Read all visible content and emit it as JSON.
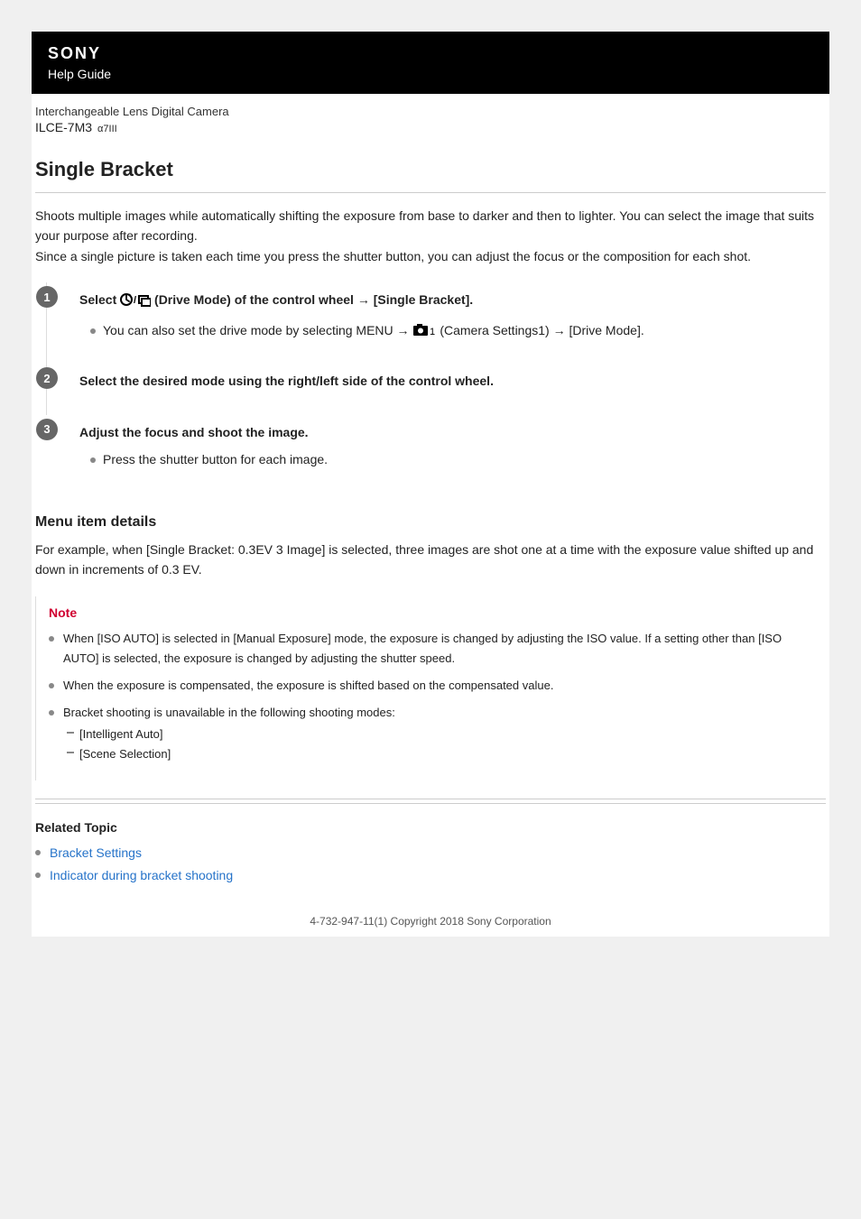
{
  "header": {
    "brand": "SONY",
    "guide": "Help Guide"
  },
  "product": {
    "description": "Interchangeable Lens Digital Camera",
    "model": "ILCE-7M3",
    "model_sub": "α7III"
  },
  "page_title": "Single Bracket",
  "intro_text": "Shoots multiple images while automatically shifting the exposure from base to darker and then to lighter. You can select the image that suits your purpose after recording.\nSince a single picture is taken each time you press the shutter button, you can adjust the focus or the composition for each shot.",
  "steps": [
    {
      "num": "1",
      "head_prefix": "Select ",
      "head_suffix": " (Drive Mode) of the control wheel → [Single Bracket].",
      "icon_name": "drive-mode-icon",
      "sub_prefix": "You can also set the drive mode by selecting MENU → ",
      "sub_suffix": " (Camera Settings1) → [Drive Mode].",
      "sub_icon": "camera-settings1-icon"
    },
    {
      "num": "2",
      "head": "Select the desired mode using the right/left side of the control wheel."
    },
    {
      "num": "3",
      "head": "Adjust the focus and shoot the image.",
      "sub": "Press the shutter button for each image."
    }
  ],
  "menu_details": {
    "title": "Menu item details",
    "body": "For example, when [Single Bracket: 0.3EV 3 Image] is selected, three images are shot one at a time with the exposure value shifted up and down in increments of 0.3 EV."
  },
  "note": {
    "label": "Note",
    "items": [
      {
        "text": "When [ISO AUTO] is selected in [Manual Exposure] mode, the exposure is changed by adjusting the ISO value. If a setting other than [ISO AUTO] is selected, the exposure is changed by adjusting the shutter speed."
      },
      {
        "text": "When the exposure is compensated, the exposure is shifted based on the compensated value."
      },
      {
        "text": "Bracket shooting is unavailable in the following shooting modes:",
        "sub": [
          "[Intelligent Auto]",
          "[Scene Selection]"
        ]
      }
    ]
  },
  "related": {
    "title": "Related Topic",
    "links": [
      "Bracket Settings",
      "Indicator during bracket shooting"
    ]
  },
  "footer": "4-732-947-11(1) Copyright 2018 Sony Corporation",
  "colors": {
    "accent": "#d00030",
    "link": "#2673c9",
    "header_bg": "#000000",
    "step_badge": "#666666"
  }
}
